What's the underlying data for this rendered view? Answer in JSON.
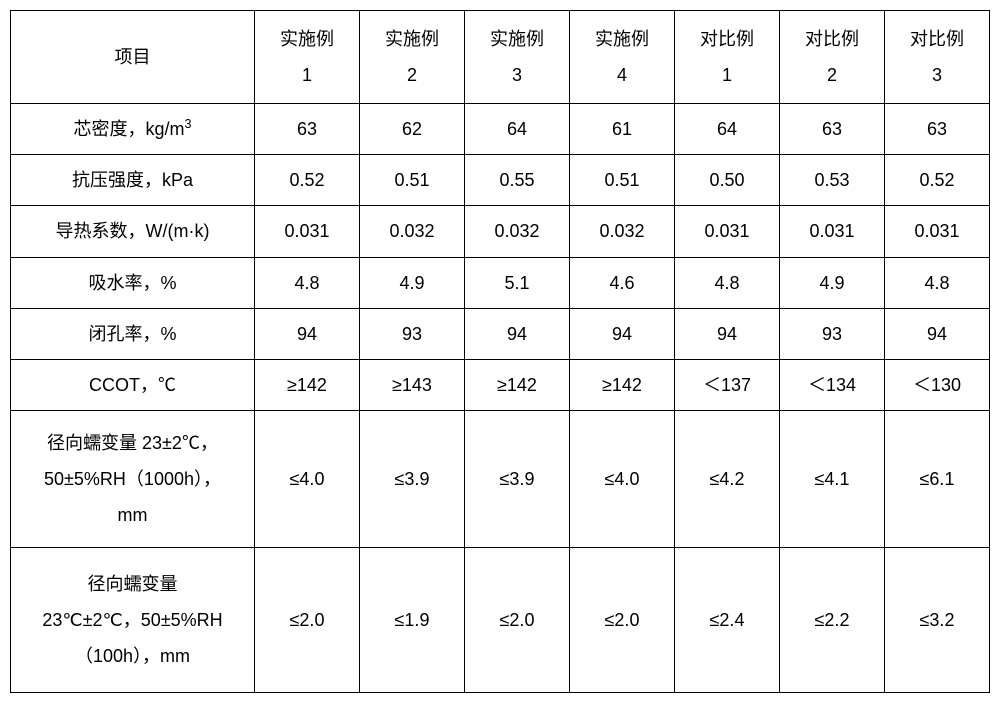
{
  "table": {
    "type": "table",
    "background_color": "#ffffff",
    "border_color": "#000000",
    "text_color": "#000000",
    "font_size": 18,
    "columns": {
      "label_header": "项目",
      "data_headers_line1": [
        "实施例",
        "实施例",
        "实施例",
        "实施例",
        "对比例",
        "对比例",
        "对比例"
      ],
      "data_headers_line2": [
        "1",
        "2",
        "3",
        "4",
        "1",
        "2",
        "3"
      ]
    },
    "rows": [
      {
        "label": "芯密度，kg/m",
        "label_sup": "3",
        "values": [
          "63",
          "62",
          "64",
          "61",
          "64",
          "63",
          "63"
        ]
      },
      {
        "label": "抗压强度，kPa",
        "values": [
          "0.52",
          "0.51",
          "0.55",
          "0.51",
          "0.50",
          "0.53",
          "0.52"
        ]
      },
      {
        "label": "导热系数，W/(m·k)",
        "values": [
          "0.031",
          "0.032",
          "0.032",
          "0.032",
          "0.031",
          "0.031",
          "0.031"
        ]
      },
      {
        "label": "吸水率，%",
        "values": [
          "4.8",
          "4.9",
          "5.1",
          "4.6",
          "4.8",
          "4.9",
          "4.8"
        ]
      },
      {
        "label": "闭孔率，%",
        "values": [
          "94",
          "93",
          "94",
          "94",
          "94",
          "93",
          "94"
        ]
      },
      {
        "label": "CCOT，℃",
        "values": [
          "≥142",
          "≥143",
          "≥142",
          "≥142",
          "＜137",
          "＜134",
          "＜130"
        ]
      },
      {
        "label_line1": "径向蠕变量 23±2℃，",
        "label_line2": "50±5%RH（1000h），",
        "label_line3": "mm",
        "values": [
          "≤4.0",
          "≤3.9",
          "≤3.9",
          "≤4.0",
          "≤4.2",
          "≤4.1",
          "≤6.1"
        ]
      },
      {
        "label_line1": "径向蠕变量",
        "label_line2": "23℃±2℃，50±5%RH",
        "label_line3": "（100h），mm",
        "values": [
          "≤2.0",
          "≤1.9",
          "≤2.0",
          "≤2.0",
          "≤2.4",
          "≤2.2",
          "≤3.2"
        ]
      }
    ]
  }
}
